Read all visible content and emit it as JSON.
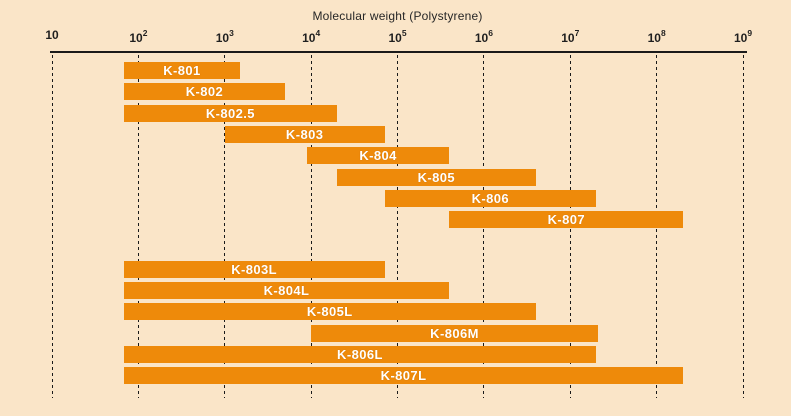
{
  "title": "Molecular weight (Polystyrene)",
  "colors": {
    "background": "#fae5c8",
    "bar": "#ee8a0a",
    "bar_label_text": "#ffffff",
    "axis_text": "#1f1f1f",
    "axis_line": "#1a1a1a"
  },
  "chart_data": {
    "type": "bar",
    "subtype": "horizontal-log-range",
    "title": "Molecular weight (Polystyrene)",
    "xlabel": "Molecular weight (Polystyrene)",
    "x_scale": "log10",
    "x_min": 10,
    "x_max": 1000000000,
    "tick_exponents": [
      1,
      2,
      3,
      4,
      5,
      6,
      7,
      8,
      9
    ],
    "grid": "vertical-dashed",
    "groups": [
      {
        "name": "standard-columns",
        "columns": [
          {
            "label": "K-801",
            "log_min": 1.83,
            "log_max": 3.18,
            "mw_min": "7×10¹",
            "mw_max": "1.5×10³"
          },
          {
            "label": "K-802",
            "log_min": 1.83,
            "log_max": 3.7,
            "mw_min": "7×10¹",
            "mw_max": "5×10³"
          },
          {
            "label": "K-802.5",
            "log_min": 1.83,
            "log_max": 4.3,
            "mw_min": "7×10¹",
            "mw_max": "2×10⁴"
          },
          {
            "label": "K-803",
            "log_min": 3.0,
            "log_max": 4.85,
            "mw_min": "1×10³",
            "mw_max": "7×10⁴"
          },
          {
            "label": "K-804",
            "log_min": 3.95,
            "log_max": 5.6,
            "mw_min": "9×10³",
            "mw_max": "4×10⁵"
          },
          {
            "label": "K-805",
            "log_min": 4.3,
            "log_max": 6.6,
            "mw_min": "2×10⁴",
            "mw_max": "4×10⁶"
          },
          {
            "label": "K-806",
            "log_min": 4.85,
            "log_max": 7.3,
            "mw_min": "7×10⁴",
            "mw_max": "2×10⁷"
          },
          {
            "label": "K-807",
            "log_min": 5.6,
            "log_max": 8.31,
            "mw_min": "4×10⁵",
            "mw_max": "2×10⁸"
          }
        ]
      },
      {
        "name": "linear-columns",
        "columns": [
          {
            "label": "K-803L",
            "log_min": 1.83,
            "log_max": 4.85,
            "mw_min": "7×10¹",
            "mw_max": "7×10⁴"
          },
          {
            "label": "K-804L",
            "log_min": 1.83,
            "log_max": 5.6,
            "mw_min": "7×10¹",
            "mw_max": "4×10⁵"
          },
          {
            "label": "K-805L",
            "log_min": 1.83,
            "log_max": 6.6,
            "mw_min": "7×10¹",
            "mw_max": "4×10⁶"
          },
          {
            "label": "K-806M",
            "log_min": 4.0,
            "log_max": 7.32,
            "mw_min": "1×10⁴",
            "mw_max": "2×10⁷"
          },
          {
            "label": "K-806L",
            "log_min": 1.83,
            "log_max": 7.3,
            "mw_min": "7×10¹",
            "mw_max": "2×10⁷"
          },
          {
            "label": "K-807L",
            "log_min": 1.83,
            "log_max": 8.31,
            "mw_min": "7×10¹",
            "mw_max": "2×10⁸"
          }
        ]
      }
    ]
  }
}
